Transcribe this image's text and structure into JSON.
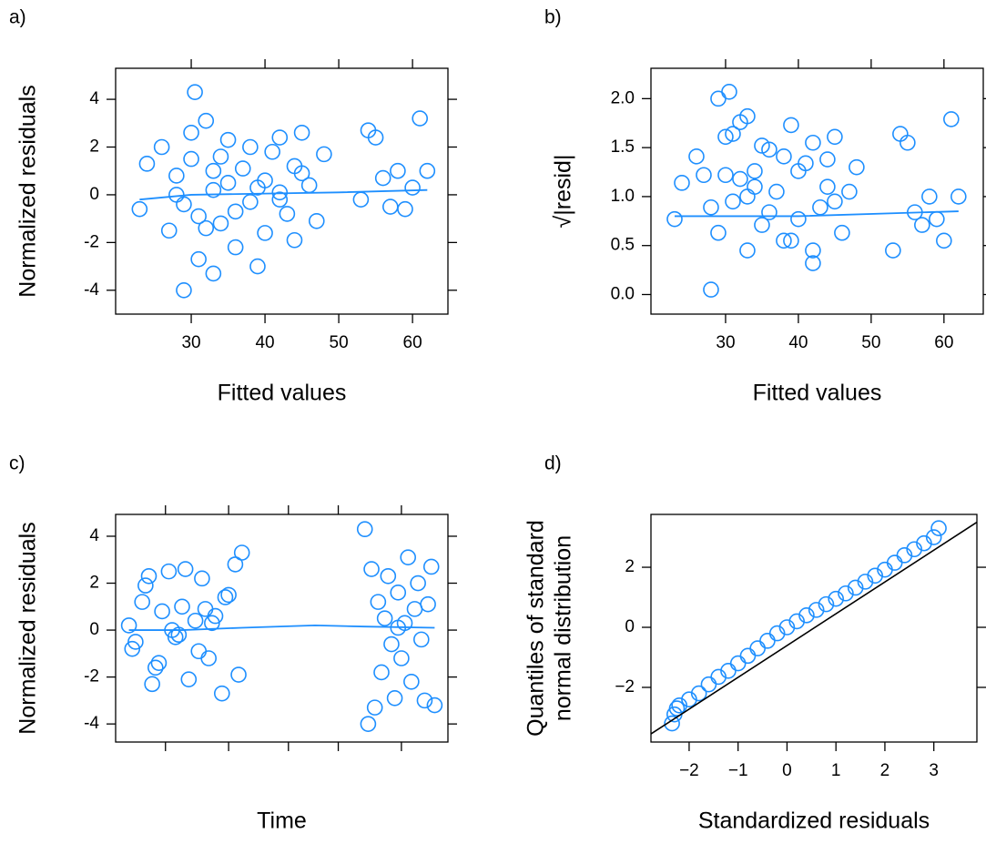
{
  "chart_data": [
    {
      "type": "scatter",
      "panel_label": "a)",
      "xlabel": "Fitted values",
      "ylabel": [
        "Normalized residuals"
      ],
      "color": "#1e8fff",
      "xlim": [
        19.75,
        64.8
      ],
      "ylim": [
        -5.0,
        5.3
      ],
      "xticks": [
        30,
        40,
        50,
        60
      ],
      "yticks": [
        -4,
        -2,
        0,
        2,
        4
      ],
      "x": [
        23,
        24,
        26,
        27,
        28,
        29,
        30,
        30.5,
        31,
        32,
        33,
        33,
        34,
        35,
        35,
        36,
        37,
        38,
        38,
        39,
        40,
        40,
        41,
        42,
        42,
        43,
        44,
        44,
        45,
        46,
        47,
        48,
        29,
        31,
        33,
        36,
        39,
        42,
        45,
        28,
        32,
        34,
        54,
        55,
        56,
        57,
        58,
        59,
        60,
        61,
        62,
        53,
        30
      ],
      "y": [
        -0.6,
        1.3,
        2.0,
        -1.5,
        0.8,
        -0.4,
        1.5,
        4.3,
        -0.9,
        3.1,
        0.2,
        -3.3,
        -1.2,
        2.3,
        0.5,
        -2.2,
        1.1,
        -0.3,
        2.0,
        -3.0,
        0.6,
        -1.6,
        1.8,
        0.1,
        2.4,
        -0.8,
        1.2,
        -1.9,
        2.6,
        0.4,
        -1.1,
        1.7,
        -4.0,
        -2.7,
        1.0,
        -0.7,
        0.3,
        -0.2,
        0.9,
        0.0,
        -1.4,
        1.6,
        2.7,
        2.4,
        0.7,
        -0.5,
        1.0,
        -0.6,
        0.3,
        3.2,
        1.0,
        -0.2,
        2.6
      ],
      "smooth": {
        "x": [
          23,
          30,
          40,
          50,
          62
        ],
        "y": [
          -0.2,
          0.0,
          0.05,
          0.1,
          0.2
        ]
      }
    },
    {
      "type": "scatter",
      "panel_label": "b)",
      "xlabel": "Fitted values",
      "ylabel": [
        "√|resid|"
      ],
      "color": "#1e8fff",
      "xlim": [
        19.75,
        65.4
      ],
      "ylim": [
        -0.2,
        2.31
      ],
      "xticks": [
        30,
        40,
        50,
        60
      ],
      "yticks": [
        {
          "value": 0,
          "label": "0.0"
        },
        0.5,
        {
          "value": 1,
          "label": "1.0"
        },
        1.5,
        {
          "value": 2,
          "label": "2.0"
        }
      ],
      "x": [
        23,
        24,
        26,
        27,
        28,
        29,
        30,
        30.5,
        31,
        32,
        33,
        33,
        34,
        35,
        35,
        36,
        37,
        38,
        38,
        39,
        40,
        40,
        41,
        42,
        42,
        43,
        44,
        44,
        45,
        46,
        47,
        48,
        29,
        31,
        33,
        36,
        39,
        42,
        45,
        28,
        32,
        34,
        54,
        55,
        56,
        57,
        58,
        59,
        60,
        61,
        62,
        53,
        30
      ],
      "y": [
        0.77,
        1.14,
        1.41,
        1.22,
        0.89,
        0.63,
        1.22,
        2.07,
        0.95,
        1.76,
        0.45,
        1.82,
        1.1,
        1.52,
        0.71,
        1.48,
        1.05,
        0.55,
        1.41,
        1.73,
        0.77,
        1.26,
        1.34,
        0.32,
        1.55,
        0.89,
        1.1,
        1.38,
        1.61,
        0.63,
        1.05,
        1.3,
        2.0,
        1.64,
        1.0,
        0.84,
        0.55,
        0.45,
        0.95,
        0.05,
        1.18,
        1.26,
        1.64,
        1.55,
        0.84,
        0.71,
        1.0,
        0.77,
        0.55,
        1.79,
        1.0,
        0.45,
        1.61
      ],
      "smooth": {
        "x": [
          23,
          40,
          62
        ],
        "y": [
          0.8,
          0.8,
          0.85
        ]
      }
    },
    {
      "type": "scatter",
      "panel_label": "c)",
      "xlabel": "Time",
      "ylabel": [
        "Normalized residuals"
      ],
      "color": "#1e8fff",
      "xlim": [
        0,
        100
      ],
      "ylim": [
        -4.77,
        4.93
      ],
      "xticks": [
        15,
        34,
        52,
        67,
        86
      ],
      "xtick_labels": false,
      "yticks": [
        -4,
        -2,
        0,
        2,
        4
      ],
      "x": [
        4,
        6,
        8,
        10,
        12,
        14,
        16,
        18,
        20,
        22,
        24,
        26,
        28,
        30,
        32,
        34,
        36,
        37,
        38,
        5,
        9,
        13,
        17,
        21,
        25,
        29,
        33,
        11,
        19,
        27,
        75,
        76,
        77,
        78,
        79,
        80,
        81,
        82,
        83,
        84,
        85,
        86,
        87,
        88,
        89,
        90,
        91,
        92,
        93,
        94,
        95,
        96,
        85
      ],
      "y": [
        0.2,
        -0.5,
        1.2,
        2.3,
        -1.6,
        0.8,
        2.5,
        -0.3,
        1.0,
        -2.1,
        0.4,
        2.2,
        -1.2,
        0.6,
        -2.7,
        1.5,
        2.8,
        -1.9,
        3.3,
        -0.8,
        1.9,
        -1.4,
        0.0,
        2.6,
        -0.9,
        0.3,
        1.4,
        -2.3,
        -0.2,
        0.9,
        4.3,
        -4.0,
        2.6,
        -3.3,
        1.2,
        -1.8,
        0.5,
        2.3,
        -0.6,
        -2.9,
        1.6,
        -1.2,
        0.3,
        3.1,
        -2.2,
        0.9,
        2.0,
        -0.4,
        -3.0,
        1.1,
        2.7,
        -3.2,
        0.1
      ],
      "smooth": {
        "x": [
          4,
          20,
          38,
          60,
          75,
          96
        ],
        "y": [
          0.0,
          0.0,
          0.1,
          0.2,
          0.15,
          0.1
        ]
      }
    },
    {
      "type": "scatter",
      "panel_label": "d)",
      "xlabel": "Standardized residuals",
      "ylabel": [
        "Quantiles of standard",
        "normal distribution"
      ],
      "color": "#1e8fff",
      "xlim": [
        -2.78,
        3.88
      ],
      "ylim": [
        -3.82,
        3.76
      ],
      "xticks": [
        {
          "value": -2,
          "label": "−2"
        },
        {
          "value": -1,
          "label": "−1"
        },
        0,
        1,
        2,
        3
      ],
      "yticks": [
        {
          "value": -2,
          "label": "−2"
        },
        0,
        2
      ],
      "x": [
        -2.35,
        -2.3,
        -2.25,
        -2.2,
        -2.0,
        -1.8,
        -1.6,
        -1.4,
        -1.2,
        -1.0,
        -0.8,
        -0.6,
        -0.4,
        -0.2,
        0,
        0.2,
        0.4,
        0.6,
        0.8,
        1.0,
        1.2,
        1.4,
        1.6,
        1.8,
        2.0,
        2.2,
        2.4,
        2.6,
        2.8,
        3.0,
        3.1
      ],
      "y": [
        -3.2,
        -2.9,
        -2.7,
        -2.6,
        -2.4,
        -2.2,
        -1.9,
        -1.65,
        -1.45,
        -1.2,
        -0.95,
        -0.7,
        -0.45,
        -0.2,
        0.0,
        0.2,
        0.4,
        0.58,
        0.77,
        0.95,
        1.13,
        1.32,
        1.52,
        1.72,
        1.92,
        2.15,
        2.4,
        2.6,
        2.8,
        3.0,
        3.3
      ],
      "reference_line": {
        "x": [
          -2.78,
          3.88
        ],
        "y": [
          -3.55,
          3.5
        ],
        "color": "#000000"
      }
    }
  ]
}
